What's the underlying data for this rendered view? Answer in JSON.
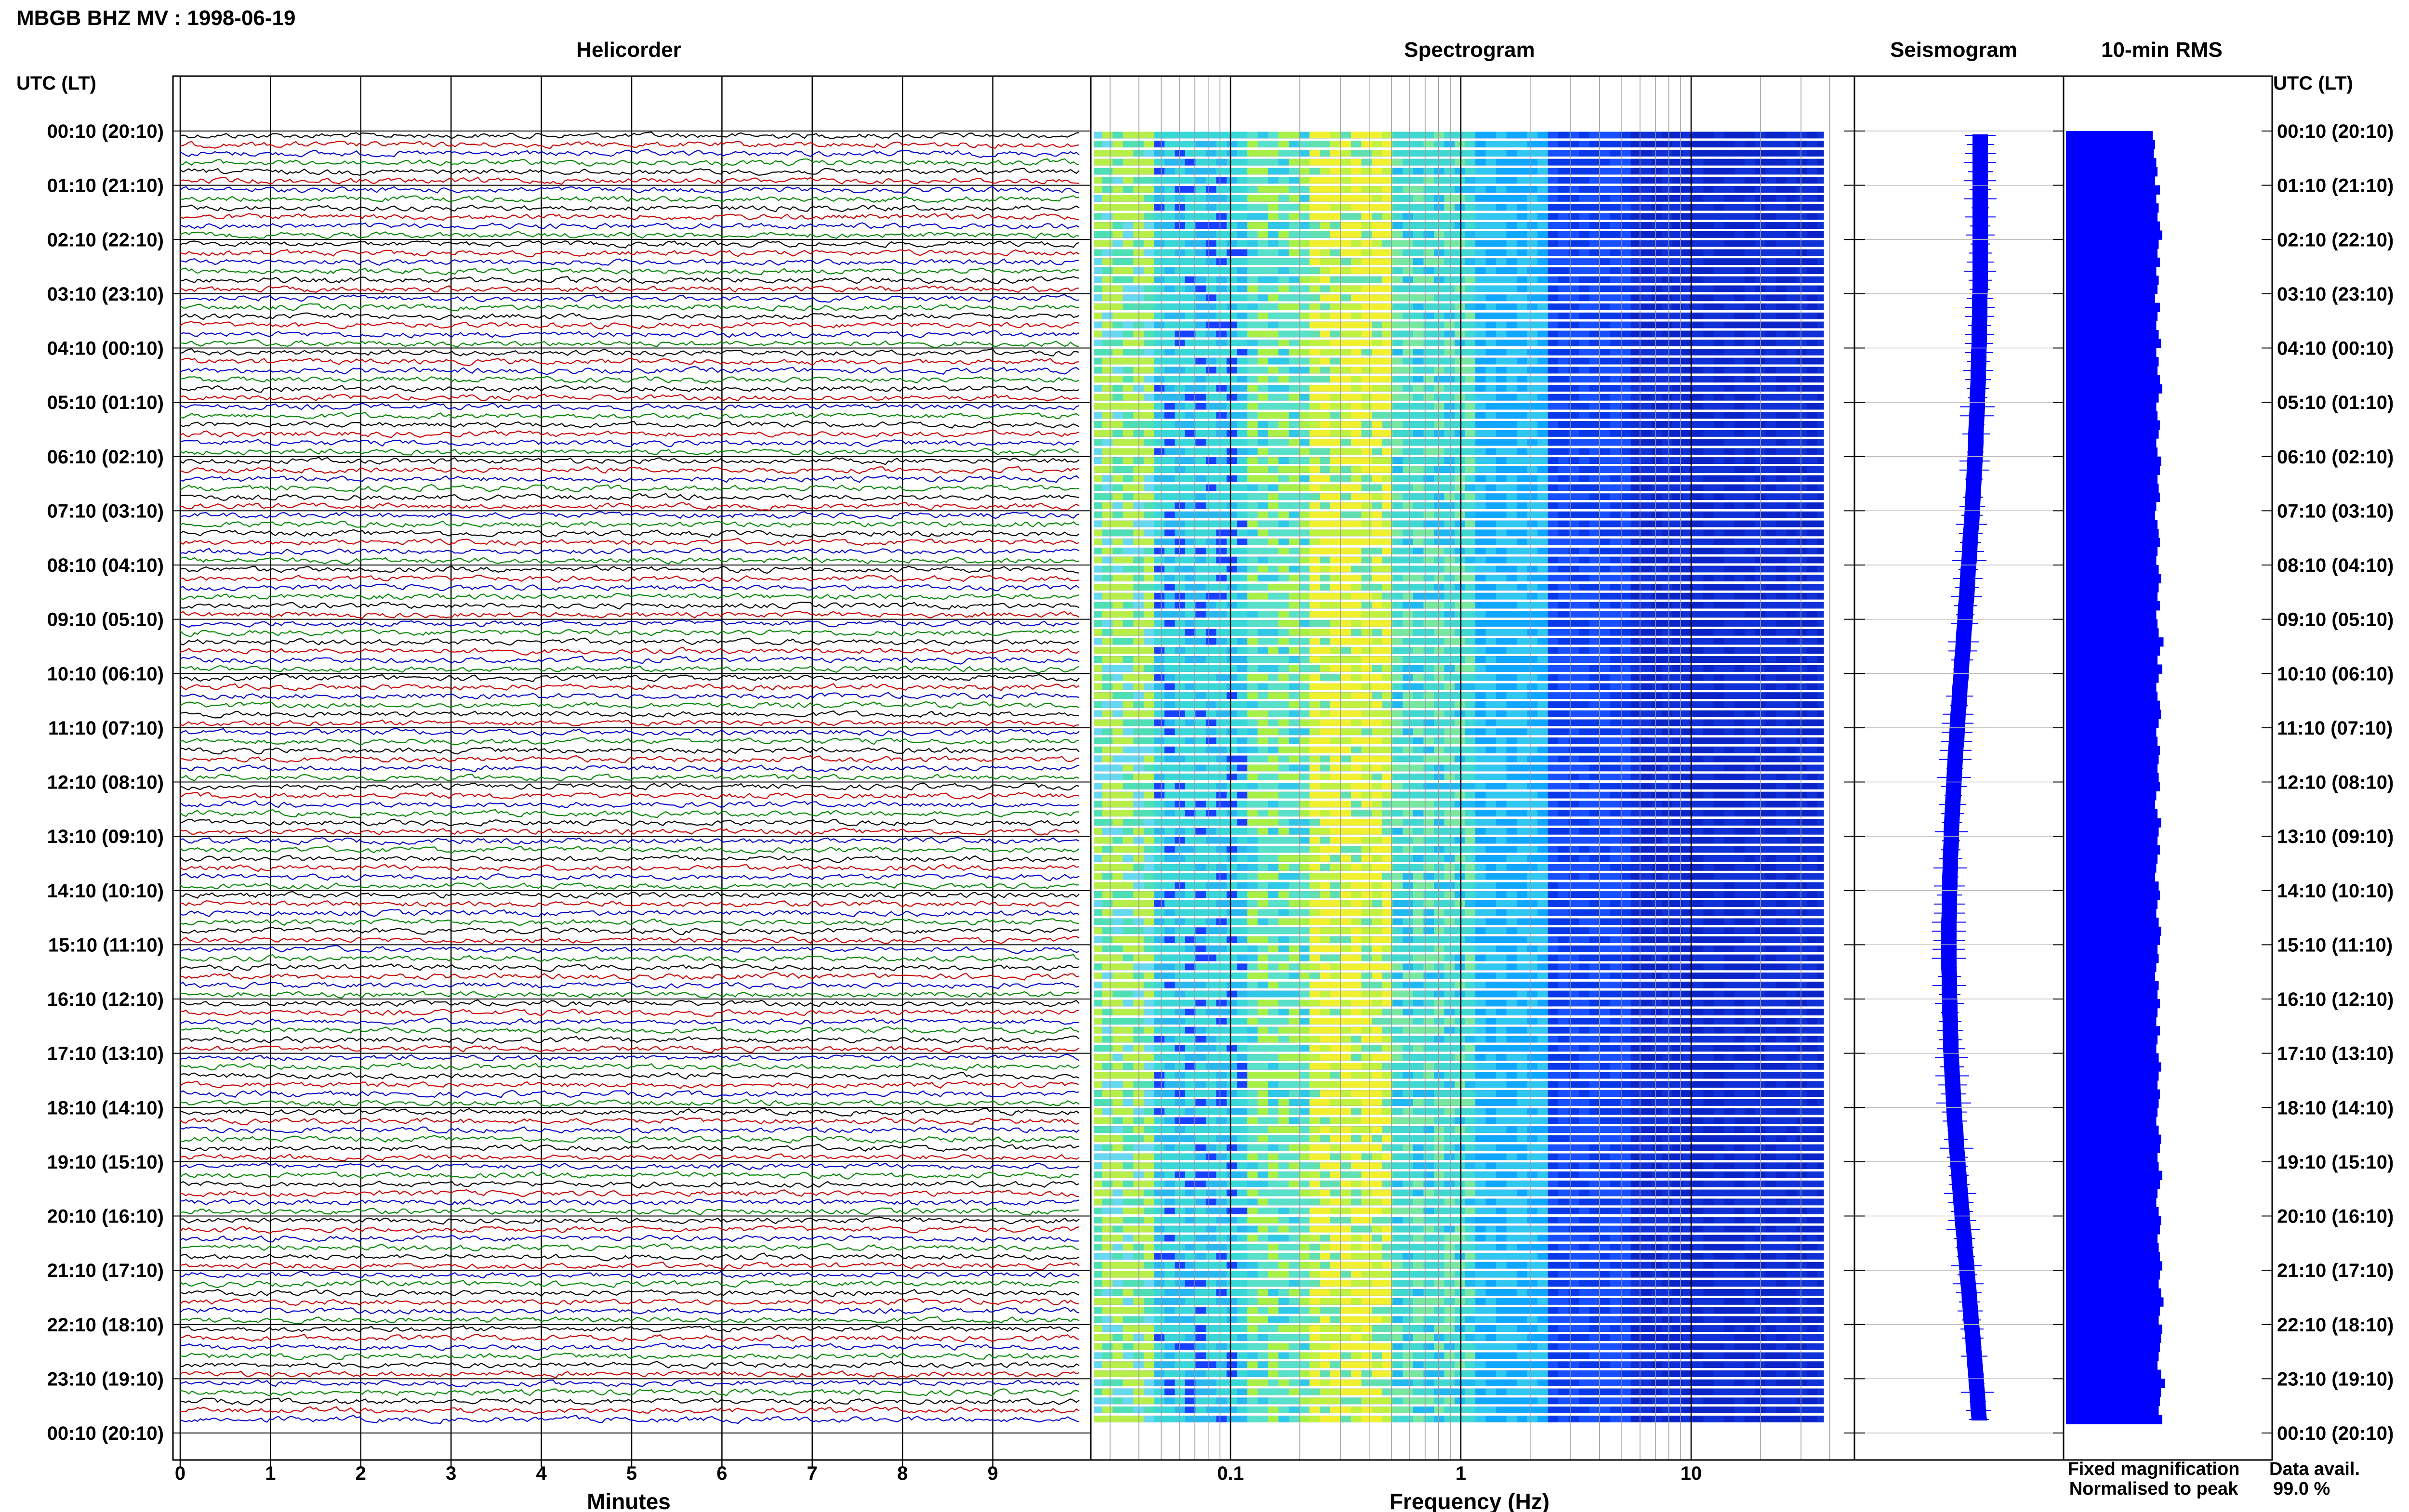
{
  "header": {
    "title": "MBGB BHZ MV : 1998-06-19"
  },
  "panels": {
    "helicorder": "Helicorder",
    "spectrogram": "Spectrogram",
    "seismogram": "Seismogram",
    "rms": "10-min RMS"
  },
  "axes": {
    "left_header": "UTC (LT)",
    "right_header": "UTC (LT)",
    "helicorder_xlabel": "Minutes",
    "spectrogram_xlabel": "Frequency (Hz)"
  },
  "legend": {
    "fixed": "Fixed magnification",
    "normalised": "Normalised to peak",
    "fixed_color": "#0000ff",
    "normalised_color": "#ff0000"
  },
  "data_avail": {
    "label": "Data avail.",
    "value": "99.0 %"
  },
  "colors": {
    "trace_cycle": [
      "#000000",
      "#cc0000",
      "#0000cc",
      "#008800"
    ],
    "rms": "#0000ff"
  },
  "chart_data": [
    {
      "type": "line",
      "panel": "Helicorder",
      "xlabel": "Minutes",
      "x_ticks": [
        0,
        1,
        2,
        3,
        4,
        5,
        6,
        7,
        8,
        9
      ],
      "xlim": [
        0,
        10
      ],
      "y_ticks": [
        "00:10 (20:10)",
        "01:10 (21:10)",
        "02:10 (22:10)",
        "03:10 (23:10)",
        "04:10 (00:10)",
        "05:10 (01:10)",
        "06:10 (02:10)",
        "07:10 (03:10)",
        "08:10 (04:10)",
        "09:10 (05:10)",
        "10:10 (06:10)",
        "11:10 (07:10)",
        "12:10 (08:10)",
        "13:10 (09:10)",
        "14:10 (10:10)",
        "15:10 (11:10)",
        "16:10 (12:10)",
        "17:10 (13:10)",
        "18:10 (14:10)",
        "19:10 (15:10)",
        "20:10 (16:10)",
        "21:10 (17:10)",
        "22:10 (18:10)",
        "23:10 (19:10)",
        "00:10 (20:10)"
      ],
      "grid": true
    },
    {
      "type": "heatmap",
      "panel": "Spectrogram",
      "xlabel": "Frequency (Hz)",
      "x_scale": "log",
      "x_ticks": [
        0.1,
        1,
        10
      ],
      "xlim": [
        0.025,
        40
      ]
    },
    {
      "type": "line",
      "panel": "Seismogram",
      "color": "#0000ff"
    },
    {
      "type": "bar",
      "panel": "10-min RMS",
      "orientation": "horizontal",
      "color": "#0000ff",
      "values_relative": [
        0.72,
        0.74,
        0.73,
        0.75,
        0.76,
        0.74,
        0.78,
        0.75,
        0.77,
        0.76,
        0.78,
        0.8,
        0.77,
        0.76,
        0.78,
        0.75,
        0.77,
        0.76,
        0.74,
        0.78,
        0.76,
        0.75,
        0.77,
        0.79,
        0.75,
        0.77,
        0.76,
        0.78,
        0.8,
        0.77,
        0.75,
        0.76,
        0.78,
        0.77,
        0.75,
        0.76,
        0.79,
        0.78,
        0.76,
        0.77,
        0.78,
        0.75,
        0.74,
        0.76,
        0.77,
        0.78,
        0.76,
        0.75,
        0.77,
        0.79,
        0.77,
        0.76,
        0.78,
        0.75,
        0.76,
        0.77,
        0.81,
        0.78,
        0.76,
        0.8,
        0.77,
        0.75,
        0.76,
        0.78,
        0.79,
        0.77,
        0.75,
        0.76,
        0.78,
        0.77,
        0.76,
        0.77,
        0.78,
        0.75,
        0.74,
        0.76,
        0.79,
        0.77,
        0.76,
        0.78,
        0.76,
        0.75,
        0.74,
        0.77,
        0.78,
        0.76,
        0.75,
        0.77,
        0.79,
        0.78,
        0.76,
        0.77,
        0.75,
        0.74,
        0.77,
        0.76,
        0.78,
        0.76,
        0.75,
        0.78,
        0.76,
        0.75,
        0.77,
        0.79,
        0.77,
        0.76,
        0.78,
        0.77,
        0.76,
        0.75,
        0.77,
        0.79,
        0.78,
        0.76,
        0.77,
        0.8,
        0.78,
        0.76,
        0.75,
        0.77,
        0.79,
        0.78,
        0.76,
        0.77,
        0.78,
        0.8,
        0.78,
        0.77,
        0.79,
        0.81,
        0.78,
        0.77,
        0.8,
        0.79,
        0.78,
        0.77,
        0.76,
        0.79,
        0.82,
        0.79,
        0.78,
        0.77,
        0.8,
        0.79,
        0.78
      ]
    }
  ]
}
